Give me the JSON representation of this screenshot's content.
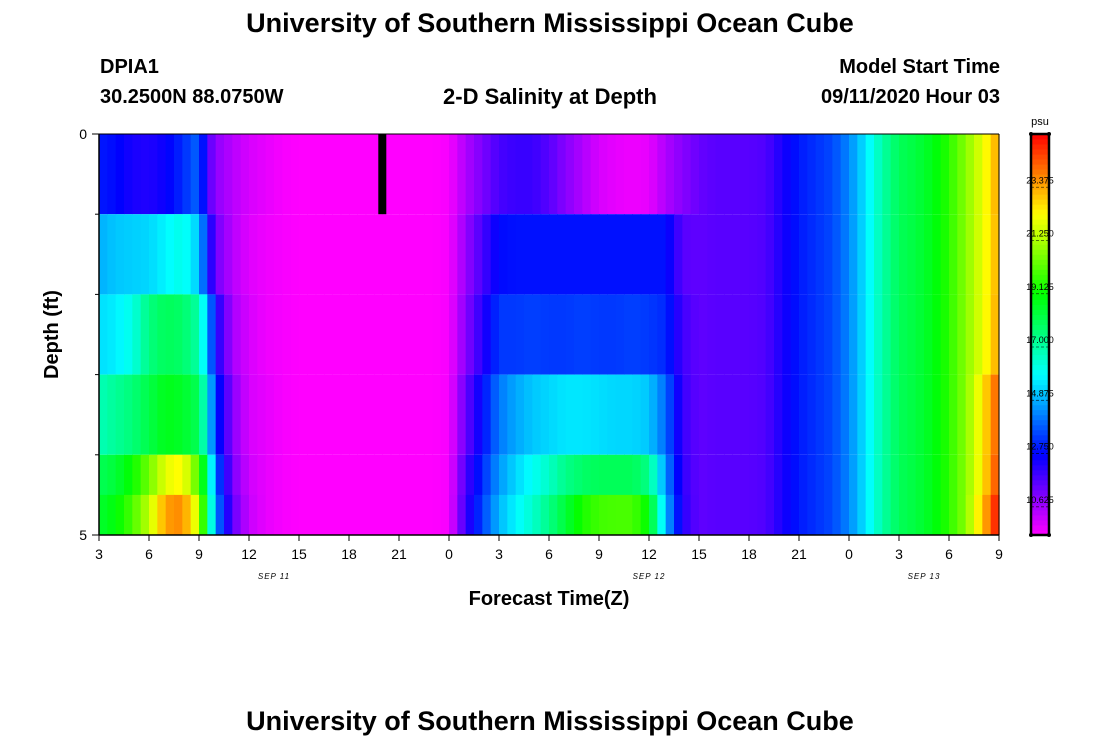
{
  "header": {
    "title": "University of Southern Mississippi Ocean Cube",
    "station_id": "DPIA1",
    "coordinates": "30.2500N 88.0750W",
    "subtitle": "2-D Salinity at Depth",
    "model_start_label": "Model Start Time",
    "model_start_value": "09/11/2020 Hour 03"
  },
  "footer": {
    "title": "University of Southern Mississippi Ocean Cube"
  },
  "chart_data": {
    "type": "heatmap",
    "title": "2-D Salinity at Depth",
    "xlabel": "Forecast Time(Z)",
    "ylabel": "Depth (ft)",
    "x_range_hours": [
      0,
      54
    ],
    "y_range_ft": [
      0,
      5
    ],
    "x_tick_labels": [
      "3",
      "6",
      "9",
      "12",
      "15",
      "18",
      "21",
      "0",
      "3",
      "6",
      "9",
      "12",
      "15",
      "18",
      "21",
      "0",
      "3",
      "6",
      "9"
    ],
    "y_tick_labels": [
      "0",
      "5"
    ],
    "y_minor_ticks": [
      1,
      2,
      3,
      4
    ],
    "date_labels": [
      {
        "text": "SEP 11",
        "hour": 10.5
      },
      {
        "text": "SEP 12",
        "hour": 33
      },
      {
        "text": "SEP 13",
        "hour": 49.5
      }
    ],
    "colorbar": {
      "unit": "psu",
      "min": 9.5,
      "max": 25.5,
      "tick_labels": [
        "10.625",
        "12.750",
        "14.875",
        "17.000",
        "19.125",
        "21.250",
        "23.375"
      ],
      "tick_values": [
        10.625,
        12.75,
        14.875,
        17.0,
        19.125,
        21.25,
        23.375
      ]
    },
    "missing_data": {
      "hour": 17,
      "depth_start": 0,
      "depth_end": 1
    },
    "layer_depths_ft": [
      0,
      1,
      2,
      3,
      4,
      5
    ],
    "layers": [
      {
        "depth_range": [
          0,
          1
        ],
        "keyframes_hours": [
          0,
          1,
          2,
          3,
          4,
          5,
          6,
          6.5,
          7,
          8,
          9,
          10,
          11,
          12,
          15,
          16,
          17,
          18,
          19,
          20,
          21,
          22,
          24,
          25,
          26,
          27,
          28,
          29,
          30,
          31,
          32,
          33,
          34,
          35,
          36,
          37,
          38,
          39,
          40,
          41,
          42,
          43,
          44,
          45,
          46,
          47,
          48,
          49,
          50,
          51,
          52,
          53,
          54
        ],
        "salinity": [
          13.0,
          12.8,
          12.4,
          12.3,
          12.6,
          13.2,
          14.0,
          11.8,
          10.9,
          10.4,
          10.0,
          9.8,
          9.6,
          9.5,
          9.5,
          9.5,
          9.5,
          9.5,
          9.5,
          9.5,
          9.6,
          10.5,
          11.8,
          12.0,
          12.0,
          11.6,
          11.0,
          10.5,
          10.0,
          9.8,
          9.7,
          9.8,
          10.5,
          11.0,
          11.4,
          11.6,
          11.6,
          11.6,
          11.7,
          12.4,
          13.0,
          13.3,
          13.6,
          14.4,
          15.6,
          17.0,
          18.0,
          18.3,
          18.8,
          19.6,
          20.8,
          22.0,
          23.5
        ]
      },
      {
        "depth_range": [
          1,
          2
        ],
        "keyframes_hours": [
          0,
          1,
          2,
          3,
          4,
          5,
          6,
          6.5,
          7,
          8,
          9,
          10,
          11,
          12,
          15,
          16,
          17,
          18,
          19,
          20,
          21,
          22,
          24,
          25,
          26,
          27,
          28,
          29,
          30,
          31,
          32,
          33,
          34,
          35,
          36,
          37,
          38,
          39,
          40,
          41,
          42,
          43,
          44,
          45,
          46,
          47,
          48,
          49,
          50,
          51,
          52,
          53,
          54
        ],
        "salinity": [
          14.9,
          15.2,
          15.3,
          15.4,
          15.8,
          16.2,
          15.2,
          13.0,
          11.3,
          10.4,
          9.9,
          9.7,
          9.6,
          9.5,
          9.5,
          9.5,
          9.5,
          9.5,
          9.5,
          9.5,
          9.6,
          10.8,
          12.8,
          12.9,
          12.9,
          12.9,
          12.9,
          12.9,
          12.9,
          12.9,
          12.9,
          12.9,
          12.9,
          11.6,
          11.5,
          11.6,
          11.6,
          11.6,
          11.7,
          12.4,
          13.0,
          13.3,
          13.6,
          14.4,
          15.6,
          17.0,
          18.0,
          18.3,
          18.8,
          19.6,
          20.8,
          22.0,
          23.4
        ]
      },
      {
        "depth_range": [
          2,
          3
        ],
        "keyframes_hours": [
          0,
          1,
          2,
          3,
          4,
          5,
          6,
          6.5,
          7,
          8,
          9,
          10,
          11,
          12,
          15,
          16,
          17,
          18,
          19,
          20,
          21,
          22,
          24,
          25,
          26,
          27,
          28,
          29,
          30,
          31,
          32,
          33,
          34,
          35,
          36,
          37,
          38,
          39,
          40,
          41,
          42,
          43,
          44,
          45,
          46,
          47,
          48,
          49,
          50,
          51,
          52,
          53,
          54
        ],
        "salinity": [
          15.5,
          15.7,
          16.2,
          17.5,
          18.0,
          17.8,
          17.0,
          15.0,
          12.5,
          10.6,
          10.0,
          9.7,
          9.6,
          9.5,
          9.5,
          9.5,
          9.5,
          9.5,
          9.5,
          9.5,
          9.6,
          11.0,
          13.4,
          13.4,
          13.5,
          13.4,
          13.4,
          13.5,
          13.4,
          13.4,
          13.5,
          13.4,
          13.2,
          11.9,
          11.5,
          11.6,
          11.6,
          11.6,
          11.7,
          12.4,
          13.0,
          13.3,
          13.6,
          14.4,
          15.6,
          17.0,
          18.0,
          18.3,
          18.8,
          19.6,
          20.8,
          22.0,
          23.5
        ]
      },
      {
        "depth_range": [
          3,
          4
        ],
        "keyframes_hours": [
          0,
          1,
          2,
          3,
          4,
          5,
          6,
          6.5,
          7,
          8,
          9,
          10,
          11,
          12,
          15,
          16,
          17,
          18,
          19,
          20,
          21,
          22,
          24,
          25,
          26,
          27,
          28,
          29,
          30,
          31,
          32,
          33,
          34,
          35,
          36,
          37,
          38,
          39,
          40,
          41,
          42,
          43,
          44,
          45,
          46,
          47,
          48,
          49,
          50,
          51,
          52,
          53,
          54
        ],
        "salinity": [
          16.8,
          17.2,
          17.6,
          18.2,
          18.8,
          18.6,
          18.0,
          16.0,
          13.2,
          11.0,
          10.0,
          9.8,
          9.6,
          9.5,
          9.5,
          9.5,
          9.5,
          9.5,
          9.5,
          9.5,
          9.6,
          11.4,
          14.2,
          14.8,
          15.2,
          15.4,
          15.6,
          15.6,
          15.5,
          15.4,
          15.4,
          15.2,
          14.0,
          12.0,
          11.5,
          11.6,
          11.6,
          11.6,
          11.7,
          12.4,
          13.0,
          13.3,
          13.6,
          14.4,
          15.6,
          17.0,
          18.0,
          18.3,
          18.8,
          19.6,
          20.8,
          22.5,
          24.5
        ]
      },
      {
        "depth_range": [
          4,
          5
        ],
        "keyframes_hours": [
          0,
          1,
          2,
          3,
          4,
          5,
          6,
          6.5,
          7,
          8,
          9,
          10,
          11,
          12,
          15,
          16,
          17,
          18,
          19,
          20,
          21,
          22,
          24,
          25,
          26,
          27,
          28,
          29,
          30,
          31,
          32,
          33,
          34,
          35,
          36,
          37,
          38,
          39,
          40,
          41,
          42,
          43,
          44,
          45,
          46,
          47,
          48,
          49,
          50,
          51,
          52,
          53,
          54
        ],
        "salinity": [
          18.0,
          18.4,
          19.2,
          20.5,
          22.0,
          22.4,
          20.0,
          17.5,
          14.0,
          11.2,
          10.1,
          9.8,
          9.6,
          9.5,
          9.5,
          9.5,
          9.5,
          9.5,
          9.5,
          9.5,
          9.6,
          11.8,
          14.6,
          15.4,
          16.0,
          16.6,
          17.4,
          17.8,
          18.0,
          18.0,
          18.0,
          17.4,
          14.5,
          12.1,
          11.5,
          11.6,
          11.6,
          11.6,
          11.7,
          12.4,
          13.0,
          13.3,
          13.6,
          14.4,
          15.6,
          17.0,
          18.0,
          18.3,
          18.8,
          19.6,
          20.8,
          22.5,
          24.8
        ]
      },
      {
        "depth_range": [
          4.5,
          5
        ],
        "keyframes_hours": [
          0,
          1,
          2,
          3,
          4,
          5,
          6,
          6.5,
          7,
          8,
          9,
          10,
          11,
          12,
          15,
          16,
          17,
          18,
          19,
          20,
          21,
          22,
          24,
          25,
          26,
          27,
          28,
          29,
          30,
          31,
          32,
          33,
          34,
          35,
          36,
          37,
          38,
          39,
          40,
          41,
          42,
          43,
          44,
          45,
          46,
          47,
          48,
          49,
          50,
          51,
          52,
          53,
          54
        ],
        "salinity": [
          18.5,
          19.0,
          20.0,
          21.5,
          23.5,
          23.8,
          21.5,
          18.0,
          14.5,
          11.5,
          10.2,
          9.8,
          9.6,
          9.5,
          9.5,
          9.5,
          9.5,
          9.5,
          9.5,
          9.5,
          9.6,
          12.0,
          15.0,
          15.8,
          16.5,
          17.4,
          18.4,
          19.4,
          19.9,
          20.0,
          20.0,
          19.0,
          15.0,
          12.2,
          11.5,
          11.6,
          11.6,
          11.6,
          11.7,
          12.4,
          13.0,
          13.3,
          13.6,
          14.4,
          15.6,
          17.0,
          18.0,
          18.3,
          18.8,
          19.6,
          20.8,
          23.0,
          25.5
        ]
      }
    ]
  }
}
